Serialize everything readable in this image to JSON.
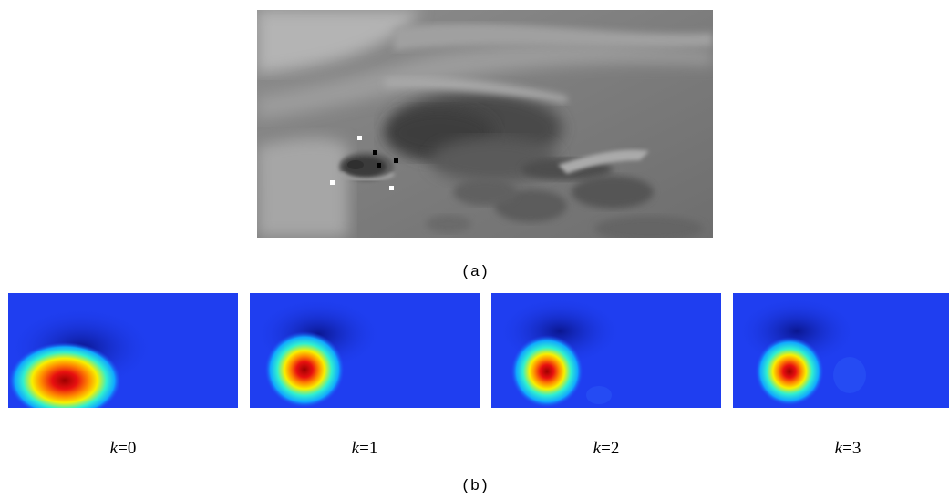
{
  "panel_a": {
    "caption": "(a)"
  },
  "panel_b": {
    "caption": "(b)",
    "maps": [
      {
        "k_var": "k",
        "k_value": "=0"
      },
      {
        "k_var": "k",
        "k_value": "=1"
      },
      {
        "k_var": "k",
        "k_value": "=2"
      },
      {
        "k_var": "k",
        "k_value": "=3"
      }
    ]
  },
  "colors": {
    "background_blue": "#1f3ef0",
    "peak_red": "#c00000"
  }
}
